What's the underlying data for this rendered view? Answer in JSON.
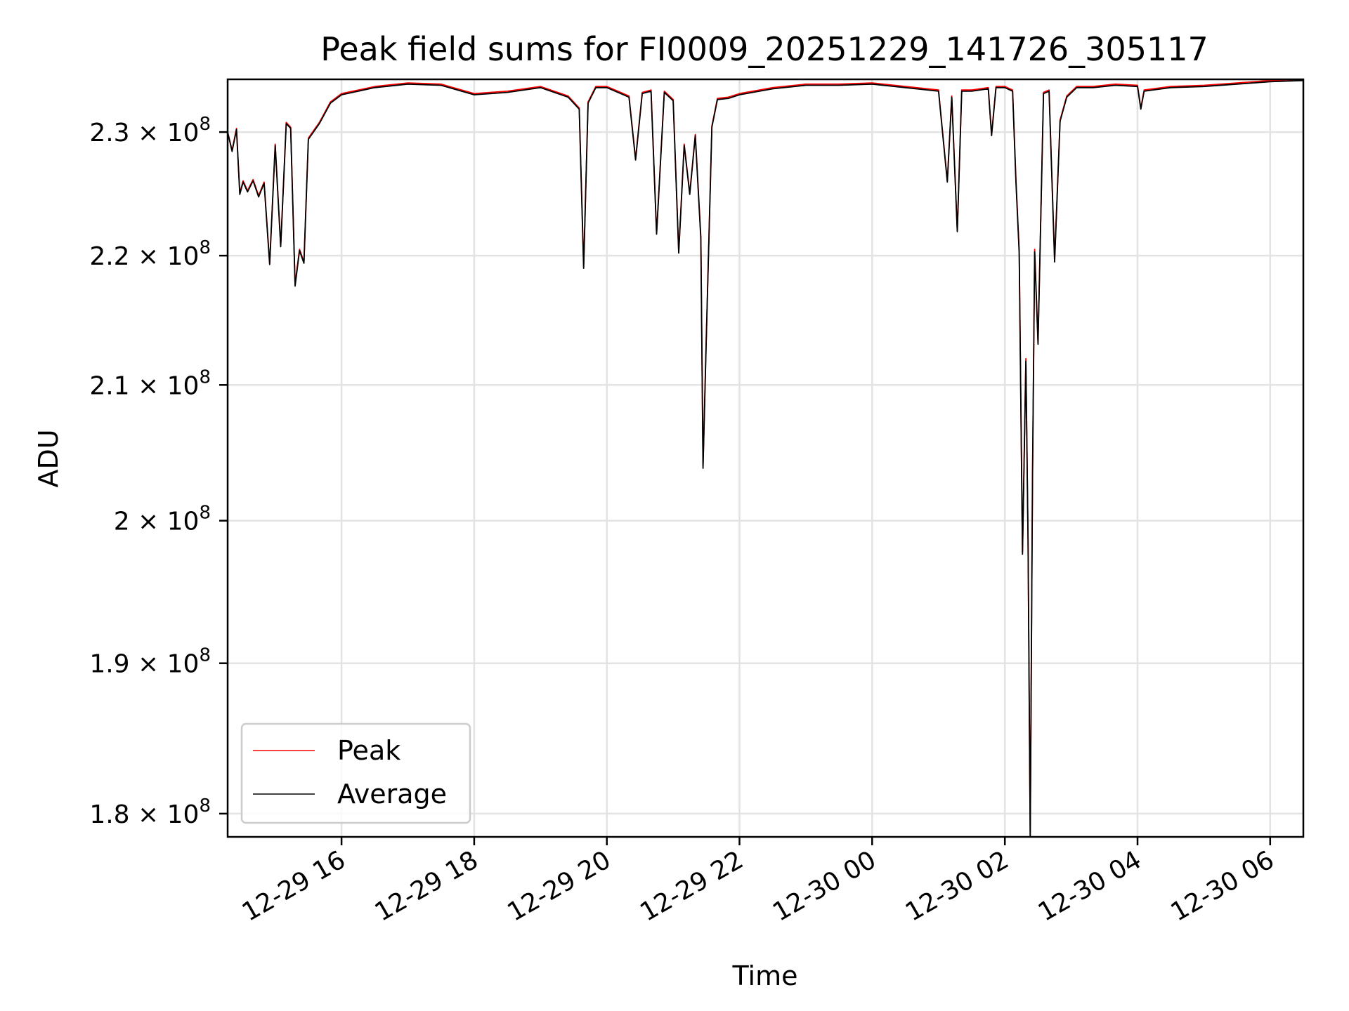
{
  "chart_data": {
    "type": "line",
    "title": "Peak field sums for FI0009_20251229_141726_305117",
    "xlabel": "Time",
    "ylabel": "ADU",
    "y_scale": "log",
    "grid": true,
    "legend_position": "lower-left",
    "xlim": [
      "2025-12-29 14:17",
      "2025-12-30 06:30"
    ],
    "ylim": [
      178500000,
      234400000
    ],
    "x_ticks": [
      {
        "value": "2025-12-29 16:00",
        "label": "12-29 16"
      },
      {
        "value": "2025-12-29 18:00",
        "label": "12-29 18"
      },
      {
        "value": "2025-12-29 20:00",
        "label": "12-29 20"
      },
      {
        "value": "2025-12-29 22:00",
        "label": "12-29 22"
      },
      {
        "value": "2025-12-30 00:00",
        "label": "12-30 00"
      },
      {
        "value": "2025-12-30 02:00",
        "label": "12-30 02"
      },
      {
        "value": "2025-12-30 04:00",
        "label": "12-30 04"
      },
      {
        "value": "2025-12-30 06:00",
        "label": "12-30 06"
      }
    ],
    "y_ticks": [
      {
        "value": 180000000,
        "mantissa": "1.8",
        "exponent": "8"
      },
      {
        "value": 190000000,
        "mantissa": "1.9",
        "exponent": "8"
      },
      {
        "value": 200000000,
        "mantissa": "2",
        "exponent": "8"
      },
      {
        "value": 210000000,
        "mantissa": "2.1",
        "exponent": "8"
      },
      {
        "value": 220000000,
        "mantissa": "2.2",
        "exponent": "8"
      },
      {
        "value": 230000000,
        "mantissa": "2.3",
        "exponent": "8"
      }
    ],
    "x": [
      "2025-12-29 14:17",
      "2025-12-29 14:21",
      "2025-12-29 14:25",
      "2025-12-29 14:28",
      "2025-12-29 14:31",
      "2025-12-29 14:35",
      "2025-12-29 14:40",
      "2025-12-29 14:45",
      "2025-12-29 14:50",
      "2025-12-29 14:55",
      "2025-12-29 15:00",
      "2025-12-29 15:05",
      "2025-12-29 15:10",
      "2025-12-29 15:14",
      "2025-12-29 15:18",
      "2025-12-29 15:22",
      "2025-12-29 15:26",
      "2025-12-29 15:30",
      "2025-12-29 15:40",
      "2025-12-29 15:50",
      "2025-12-29 16:00",
      "2025-12-29 16:30",
      "2025-12-29 17:00",
      "2025-12-29 17:30",
      "2025-12-29 18:00",
      "2025-12-29 18:30",
      "2025-12-29 19:00",
      "2025-12-29 19:25",
      "2025-12-29 19:35",
      "2025-12-29 19:39",
      "2025-12-29 19:43",
      "2025-12-29 19:50",
      "2025-12-29 20:00",
      "2025-12-29 20:20",
      "2025-12-29 20:26",
      "2025-12-29 20:32",
      "2025-12-29 20:40",
      "2025-12-29 20:45",
      "2025-12-29 20:52",
      "2025-12-29 21:00",
      "2025-12-29 21:05",
      "2025-12-29 21:10",
      "2025-12-29 21:15",
      "2025-12-29 21:20",
      "2025-12-29 21:25",
      "2025-12-29 21:27",
      "2025-12-29 21:30",
      "2025-12-29 21:35",
      "2025-12-29 21:40",
      "2025-12-29 21:50",
      "2025-12-29 22:00",
      "2025-12-29 22:30",
      "2025-12-29 23:00",
      "2025-12-29 23:30",
      "2025-12-30 00:00",
      "2025-12-30 00:30",
      "2025-12-30 01:00",
      "2025-12-30 01:08",
      "2025-12-30 01:12",
      "2025-12-30 01:17",
      "2025-12-30 01:21",
      "2025-12-30 01:30",
      "2025-12-30 01:45",
      "2025-12-30 01:48",
      "2025-12-30 01:52",
      "2025-12-30 02:00",
      "2025-12-30 02:07",
      "2025-12-30 02:10",
      "2025-12-30 02:13",
      "2025-12-30 02:16",
      "2025-12-30 02:19",
      "2025-12-30 02:21",
      "2025-12-30 02:23",
      "2025-12-30 02:25",
      "2025-12-30 02:27",
      "2025-12-30 02:30",
      "2025-12-30 02:35",
      "2025-12-30 02:40",
      "2025-12-30 02:45",
      "2025-12-30 02:50",
      "2025-12-30 02:56",
      "2025-12-30 03:05",
      "2025-12-30 03:20",
      "2025-12-30 03:40",
      "2025-12-30 04:00",
      "2025-12-30 04:03",
      "2025-12-30 04:06",
      "2025-12-30 04:30",
      "2025-12-30 05:00",
      "2025-12-30 05:30",
      "2025-12-30 06:00",
      "2025-12-30 06:30"
    ],
    "series": [
      {
        "name": "Peak",
        "color": "#ff0000",
        "values": [
          230000000,
          228500000,
          230300000,
          225000000,
          226000000,
          225200000,
          226100000,
          224800000,
          225900000,
          219400000,
          229000000,
          220800000,
          230800000,
          230400000,
          217800000,
          220500000,
          219500000,
          229500000,
          230800000,
          232500000,
          233200000,
          233800000,
          234100000,
          234000000,
          233200000,
          233400000,
          233800000,
          233000000,
          232000000,
          219200000,
          232500000,
          233800000,
          233800000,
          233000000,
          227800000,
          233300000,
          233500000,
          221800000,
          233400000,
          232700000,
          220300000,
          229000000,
          225000000,
          229800000,
          221500000,
          204000000,
          213800000,
          230500000,
          232800000,
          232900000,
          233200000,
          233700000,
          234000000,
          234000000,
          234100000,
          233800000,
          233500000,
          226000000,
          233000000,
          222000000,
          233500000,
          233500000,
          233700000,
          229800000,
          233800000,
          233800000,
          233500000,
          226200000,
          220400000,
          197800000,
          212000000,
          198700000,
          178500000,
          203000000,
          220500000,
          213300000,
          233300000,
          233500000,
          219700000,
          231000000,
          233000000,
          233800000,
          233800000,
          234000000,
          233900000,
          232000000,
          233500000,
          233800000,
          233900000,
          234100000,
          234300000,
          234400000
        ]
      },
      {
        "name": "Average",
        "color": "#000000",
        "values": [
          230000000,
          228400000,
          230200000,
          224900000,
          225900000,
          225100000,
          226000000,
          224700000,
          225800000,
          219300000,
          228900000,
          220700000,
          230700000,
          230300000,
          217600000,
          220400000,
          219400000,
          229400000,
          230700000,
          232400000,
          233100000,
          233700000,
          234000000,
          233900000,
          233100000,
          233300000,
          233700000,
          232900000,
          231900000,
          219000000,
          232400000,
          233700000,
          233700000,
          232900000,
          227700000,
          233200000,
          233400000,
          221700000,
          233300000,
          232600000,
          220200000,
          228900000,
          224900000,
          229700000,
          221300000,
          203800000,
          213600000,
          230400000,
          232700000,
          232800000,
          233100000,
          233600000,
          233900000,
          233900000,
          234000000,
          233700000,
          233400000,
          225900000,
          232900000,
          221900000,
          233400000,
          233400000,
          233600000,
          229700000,
          233700000,
          233700000,
          233400000,
          226000000,
          220200000,
          197600000,
          211800000,
          198500000,
          178500000,
          202800000,
          220300000,
          213100000,
          233200000,
          233400000,
          219500000,
          230900000,
          232900000,
          233700000,
          233700000,
          233900000,
          233800000,
          231900000,
          233400000,
          233700000,
          233800000,
          234000000,
          234200000,
          234300000
        ]
      }
    ]
  }
}
